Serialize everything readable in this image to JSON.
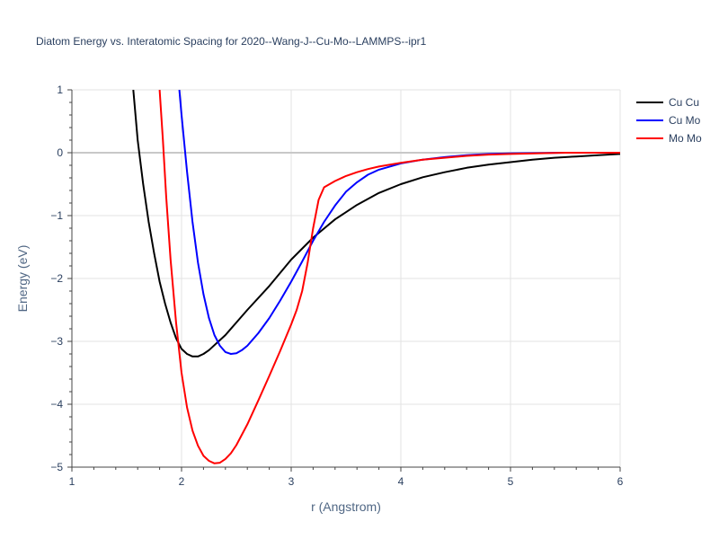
{
  "chart_data": {
    "type": "line",
    "title": "Diatom Energy vs. Interatomic Spacing for 2020--Wang-J--Cu-Mo--LAMMPS--ipr1",
    "xlabel": "r (Angstrom)",
    "ylabel": "Energy (eV)",
    "xlim": [
      1,
      6
    ],
    "ylim": [
      -5,
      1
    ],
    "x_ticks": [
      "1",
      "2",
      "3",
      "4",
      "5",
      "6"
    ],
    "y_ticks": [
      "1",
      "0",
      "−1",
      "−2",
      "−3",
      "−4",
      "−5"
    ],
    "grid": true,
    "legend_position": "top-right",
    "series": [
      {
        "name": "Cu Cu",
        "color": "#000000",
        "points": [
          [
            1.56,
            1.0
          ],
          [
            1.6,
            0.2
          ],
          [
            1.65,
            -0.5
          ],
          [
            1.7,
            -1.1
          ],
          [
            1.75,
            -1.6
          ],
          [
            1.8,
            -2.05
          ],
          [
            1.85,
            -2.4
          ],
          [
            1.9,
            -2.7
          ],
          [
            1.95,
            -2.95
          ],
          [
            2.0,
            -3.12
          ],
          [
            2.05,
            -3.2
          ],
          [
            2.1,
            -3.24
          ],
          [
            2.15,
            -3.24
          ],
          [
            2.2,
            -3.2
          ],
          [
            2.25,
            -3.14
          ],
          [
            2.3,
            -3.06
          ],
          [
            2.4,
            -2.9
          ],
          [
            2.5,
            -2.7
          ],
          [
            2.6,
            -2.5
          ],
          [
            2.8,
            -2.12
          ],
          [
            3.0,
            -1.7
          ],
          [
            3.2,
            -1.35
          ],
          [
            3.4,
            -1.06
          ],
          [
            3.6,
            -0.83
          ],
          [
            3.8,
            -0.64
          ],
          [
            4.0,
            -0.5
          ],
          [
            4.2,
            -0.39
          ],
          [
            4.4,
            -0.31
          ],
          [
            4.6,
            -0.24
          ],
          [
            4.8,
            -0.19
          ],
          [
            5.0,
            -0.15
          ],
          [
            5.2,
            -0.11
          ],
          [
            5.4,
            -0.08
          ],
          [
            5.6,
            -0.06
          ],
          [
            5.8,
            -0.04
          ],
          [
            6.0,
            -0.02
          ]
        ]
      },
      {
        "name": "Cu Mo",
        "color": "#0000ff",
        "points": [
          [
            1.98,
            1.0
          ],
          [
            2.0,
            0.6
          ],
          [
            2.05,
            -0.3
          ],
          [
            2.1,
            -1.1
          ],
          [
            2.15,
            -1.75
          ],
          [
            2.2,
            -2.25
          ],
          [
            2.25,
            -2.63
          ],
          [
            2.3,
            -2.9
          ],
          [
            2.35,
            -3.07
          ],
          [
            2.4,
            -3.17
          ],
          [
            2.45,
            -3.2
          ],
          [
            2.5,
            -3.19
          ],
          [
            2.55,
            -3.14
          ],
          [
            2.6,
            -3.07
          ],
          [
            2.7,
            -2.87
          ],
          [
            2.8,
            -2.63
          ],
          [
            2.9,
            -2.35
          ],
          [
            3.0,
            -2.05
          ],
          [
            3.1,
            -1.73
          ],
          [
            3.2,
            -1.4
          ],
          [
            3.3,
            -1.1
          ],
          [
            3.4,
            -0.84
          ],
          [
            3.5,
            -0.62
          ],
          [
            3.6,
            -0.47
          ],
          [
            3.7,
            -0.35
          ],
          [
            3.8,
            -0.27
          ],
          [
            4.0,
            -0.17
          ],
          [
            4.2,
            -0.11
          ],
          [
            4.4,
            -0.07
          ],
          [
            4.6,
            -0.04
          ],
          [
            4.8,
            -0.02
          ],
          [
            5.0,
            -0.01
          ],
          [
            5.5,
            0.0
          ],
          [
            6.0,
            0.0
          ]
        ]
      },
      {
        "name": "Mo Mo",
        "color": "#ff0000",
        "points": [
          [
            1.8,
            1.0
          ],
          [
            1.83,
            0.2
          ],
          [
            1.86,
            -0.7
          ],
          [
            1.9,
            -1.7
          ],
          [
            1.95,
            -2.7
          ],
          [
            2.0,
            -3.5
          ],
          [
            2.05,
            -4.05
          ],
          [
            2.1,
            -4.42
          ],
          [
            2.15,
            -4.66
          ],
          [
            2.2,
            -4.82
          ],
          [
            2.25,
            -4.9
          ],
          [
            2.3,
            -4.94
          ],
          [
            2.35,
            -4.93
          ],
          [
            2.4,
            -4.87
          ],
          [
            2.45,
            -4.78
          ],
          [
            2.5,
            -4.65
          ],
          [
            2.6,
            -4.32
          ],
          [
            2.7,
            -3.94
          ],
          [
            2.8,
            -3.55
          ],
          [
            2.9,
            -3.15
          ],
          [
            3.0,
            -2.73
          ],
          [
            3.05,
            -2.5
          ],
          [
            3.1,
            -2.2
          ],
          [
            3.15,
            -1.75
          ],
          [
            3.2,
            -1.2
          ],
          [
            3.25,
            -0.75
          ],
          [
            3.3,
            -0.55
          ],
          [
            3.4,
            -0.45
          ],
          [
            3.5,
            -0.37
          ],
          [
            3.6,
            -0.31
          ],
          [
            3.7,
            -0.26
          ],
          [
            3.8,
            -0.22
          ],
          [
            4.0,
            -0.16
          ],
          [
            4.2,
            -0.11
          ],
          [
            4.4,
            -0.08
          ],
          [
            4.6,
            -0.05
          ],
          [
            4.8,
            -0.03
          ],
          [
            5.0,
            -0.02
          ],
          [
            5.5,
            0.0
          ],
          [
            6.0,
            0.0
          ]
        ]
      }
    ]
  }
}
